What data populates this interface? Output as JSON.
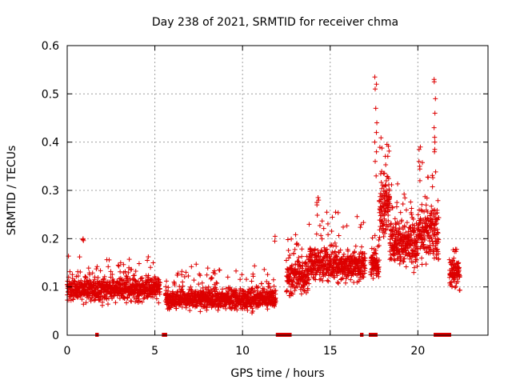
{
  "chart_data": {
    "type": "scatter",
    "title": "Day 238 of 2021, SRMTID for receiver chma",
    "xlabel": "GPS time / hours",
    "ylabel": "SRMTID / TECUs",
    "xlim": [
      0,
      24
    ],
    "ylim": [
      0,
      0.6
    ],
    "xticks": [
      0,
      5,
      10,
      15,
      20
    ],
    "yticks": [
      0,
      0.1,
      0.2,
      0.3,
      0.4,
      0.5,
      0.6
    ],
    "grid": true,
    "marker": "+",
    "color": "#dd0000",
    "series": [
      {
        "name": "SRMTID",
        "segments": [
          {
            "start": 0.0,
            "end": 5.3,
            "step": 0.007,
            "base": 0.095,
            "spread": 0.035,
            "outlier_rate": 0.08,
            "outlier_spread": 0.06
          },
          {
            "start": 5.6,
            "end": 11.9,
            "step": 0.007,
            "base": 0.075,
            "spread": 0.03,
            "outlier_rate": 0.08,
            "outlier_spread": 0.06
          },
          {
            "start": 12.5,
            "end": 13.8,
            "step": 0.007,
            "base": 0.12,
            "spread": 0.045,
            "outlier_rate": 0.1,
            "outlier_spread": 0.08
          },
          {
            "start": 13.8,
            "end": 17.0,
            "step": 0.007,
            "base": 0.145,
            "spread": 0.05,
            "outlier_rate": 0.1,
            "outlier_spread": 0.1
          },
          {
            "start": 17.3,
            "end": 17.8,
            "step": 0.007,
            "base": 0.15,
            "spread": 0.04,
            "outlier_rate": 0.08,
            "outlier_spread": 0.06
          },
          {
            "start": 17.8,
            "end": 18.4,
            "step": 0.005,
            "base": 0.27,
            "spread": 0.09,
            "outlier_rate": 0.12,
            "outlier_spread": 0.15
          },
          {
            "start": 18.4,
            "end": 20.0,
            "step": 0.006,
            "base": 0.19,
            "spread": 0.07,
            "outlier_rate": 0.1,
            "outlier_spread": 0.1
          },
          {
            "start": 20.0,
            "end": 21.2,
            "step": 0.006,
            "base": 0.21,
            "spread": 0.08,
            "outlier_rate": 0.12,
            "outlier_spread": 0.15
          },
          {
            "start": 21.8,
            "end": 22.4,
            "step": 0.006,
            "base": 0.13,
            "spread": 0.05,
            "outlier_rate": 0.1,
            "outlier_spread": 0.07
          }
        ],
        "spikes": [
          {
            "x": 17.6,
            "values": [
              0.52,
              0.535,
              0.51,
              0.47,
              0.44,
              0.42,
              0.4,
              0.38,
              0.36,
              0.33
            ]
          },
          {
            "x": 20.1,
            "values": [
              0.39,
              0.385,
              0.36,
              0.35,
              0.32
            ]
          },
          {
            "x": 20.95,
            "values": [
              0.53,
              0.525,
              0.49,
              0.46,
              0.43,
              0.41,
              0.4,
              0.385,
              0.38
            ]
          },
          {
            "x": 14.3,
            "values": [
              0.285,
              0.28,
              0.275,
              0.27
            ]
          },
          {
            "x": 11.8,
            "values": [
              0.205,
              0.195
            ]
          },
          {
            "x": 0.9,
            "values": [
              0.2,
              0.198,
              0.196
            ]
          }
        ]
      }
    ],
    "zero_markers": [
      [
        1.6,
        1.8
      ],
      [
        5.4,
        5.7
      ],
      [
        11.9,
        12.8
      ],
      [
        16.7,
        16.9
      ],
      [
        17.2,
        17.7
      ],
      [
        20.9,
        21.9
      ]
    ]
  }
}
